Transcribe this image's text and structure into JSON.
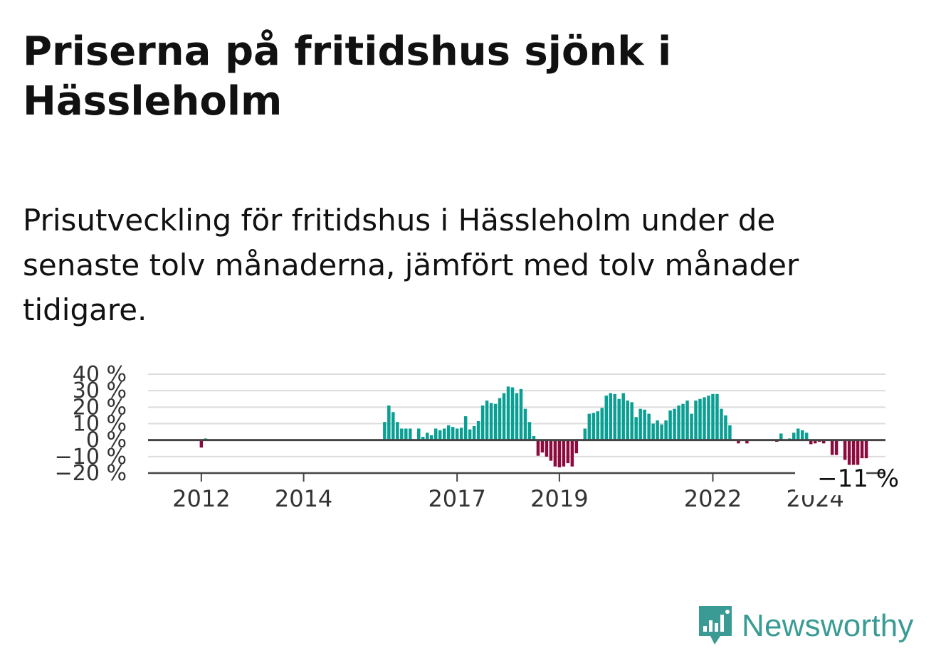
{
  "title": "Priserna på fritidshus sjönk i Hässleholm",
  "subtitle": "Prisutveckling för fritidshus i Hässleholm under de senaste tolv månaderna, jämfört med tolv månader tidigare.",
  "brand": {
    "name": "Newsworthy",
    "color": "#3a9b95",
    "logo_icon": "newsworthy-bar-chart-icon"
  },
  "colors": {
    "positive": "#0a9f93",
    "negative": "#8c0a3e",
    "grid": "#dcdcdc",
    "zero_line": "#444444",
    "axis_text": "#333333"
  },
  "chart_data": {
    "type": "bar",
    "title": "",
    "xlabel": "",
    "ylabel": "",
    "ylim": [
      -20,
      40
    ],
    "yticks": [
      40,
      30,
      20,
      10,
      0,
      -10,
      -20
    ],
    "ytick_labels": [
      "40 %",
      "30 %",
      "20 %",
      "10 %",
      "0 %",
      "−10 %",
      "−20 %"
    ],
    "x_start": "2011-01",
    "x_end": "2025-05",
    "xtick_labels": [
      "2012",
      "2014",
      "2017",
      "2019",
      "2022",
      "2024"
    ],
    "xticks": [
      "2012-01",
      "2014-01",
      "2017-01",
      "2019-01",
      "2022-01",
      "2024-01"
    ],
    "grid": true,
    "last_value_label": "−11 %",
    "series": [
      {
        "values": [
          {
            "date": "2012-01",
            "value": -4.5
          },
          {
            "date": "2012-02",
            "value": 1
          },
          {
            "date": "2015-08",
            "value": 11
          },
          {
            "date": "2015-09",
            "value": 21
          },
          {
            "date": "2015-10",
            "value": 17
          },
          {
            "date": "2015-11",
            "value": 11
          },
          {
            "date": "2015-12",
            "value": 7
          },
          {
            "date": "2016-01",
            "value": 7
          },
          {
            "date": "2016-02",
            "value": 7
          },
          {
            "date": "2016-04",
            "value": 7
          },
          {
            "date": "2016-05",
            "value": 2
          },
          {
            "date": "2016-06",
            "value": 4.5
          },
          {
            "date": "2016-07",
            "value": 3
          },
          {
            "date": "2016-08",
            "value": 7
          },
          {
            "date": "2016-09",
            "value": 6
          },
          {
            "date": "2016-10",
            "value": 7
          },
          {
            "date": "2016-11",
            "value": 9
          },
          {
            "date": "2016-12",
            "value": 8
          },
          {
            "date": "2017-01",
            "value": 7
          },
          {
            "date": "2017-02",
            "value": 7.5
          },
          {
            "date": "2017-03",
            "value": 14.5
          },
          {
            "date": "2017-04",
            "value": 6.5
          },
          {
            "date": "2017-05",
            "value": 8.5
          },
          {
            "date": "2017-06",
            "value": 11.5
          },
          {
            "date": "2017-07",
            "value": 21
          },
          {
            "date": "2017-08",
            "value": 24
          },
          {
            "date": "2017-09",
            "value": 22.5
          },
          {
            "date": "2017-10",
            "value": 22
          },
          {
            "date": "2017-11",
            "value": 25.5
          },
          {
            "date": "2017-12",
            "value": 28.5
          },
          {
            "date": "2018-01",
            "value": 32.5
          },
          {
            "date": "2018-02",
            "value": 32
          },
          {
            "date": "2018-03",
            "value": 28.5
          },
          {
            "date": "2018-04",
            "value": 31
          },
          {
            "date": "2018-05",
            "value": 19
          },
          {
            "date": "2018-06",
            "value": 11
          },
          {
            "date": "2018-07",
            "value": 2.5
          },
          {
            "date": "2018-08",
            "value": -9.5
          },
          {
            "date": "2018-09",
            "value": -7.5
          },
          {
            "date": "2018-10",
            "value": -10
          },
          {
            "date": "2018-11",
            "value": -12.5
          },
          {
            "date": "2018-12",
            "value": -16
          },
          {
            "date": "2019-01",
            "value": -16.5
          },
          {
            "date": "2019-02",
            "value": -16
          },
          {
            "date": "2019-03",
            "value": -14
          },
          {
            "date": "2019-04",
            "value": -16
          },
          {
            "date": "2019-05",
            "value": -8
          },
          {
            "date": "2019-07",
            "value": 7
          },
          {
            "date": "2019-08",
            "value": 16
          },
          {
            "date": "2019-09",
            "value": 16.5
          },
          {
            "date": "2019-10",
            "value": 17.5
          },
          {
            "date": "2019-11",
            "value": 19.5
          },
          {
            "date": "2019-12",
            "value": 27
          },
          {
            "date": "2020-01",
            "value": 28.5
          },
          {
            "date": "2020-02",
            "value": 28
          },
          {
            "date": "2020-03",
            "value": 25
          },
          {
            "date": "2020-04",
            "value": 28.5
          },
          {
            "date": "2020-05",
            "value": 24
          },
          {
            "date": "2020-06",
            "value": 23
          },
          {
            "date": "2020-07",
            "value": 14
          },
          {
            "date": "2020-08",
            "value": 19
          },
          {
            "date": "2020-09",
            "value": 18.5
          },
          {
            "date": "2020-10",
            "value": 16
          },
          {
            "date": "2020-11",
            "value": 10
          },
          {
            "date": "2020-12",
            "value": 12
          },
          {
            "date": "2021-01",
            "value": 9.5
          },
          {
            "date": "2021-02",
            "value": 12
          },
          {
            "date": "2021-03",
            "value": 18
          },
          {
            "date": "2021-04",
            "value": 19
          },
          {
            "date": "2021-05",
            "value": 21
          },
          {
            "date": "2021-06",
            "value": 22
          },
          {
            "date": "2021-07",
            "value": 24
          },
          {
            "date": "2021-08",
            "value": 16
          },
          {
            "date": "2021-09",
            "value": 24
          },
          {
            "date": "2021-10",
            "value": 25
          },
          {
            "date": "2021-11",
            "value": 26
          },
          {
            "date": "2021-12",
            "value": 27
          },
          {
            "date": "2022-01",
            "value": 28
          },
          {
            "date": "2022-02",
            "value": 28
          },
          {
            "date": "2022-03",
            "value": 19
          },
          {
            "date": "2022-04",
            "value": 15
          },
          {
            "date": "2022-05",
            "value": 9
          },
          {
            "date": "2022-07",
            "value": -2
          },
          {
            "date": "2022-09",
            "value": -2
          },
          {
            "date": "2023-04",
            "value": -1
          },
          {
            "date": "2023-05",
            "value": 4
          },
          {
            "date": "2023-07",
            "value": 1
          },
          {
            "date": "2023-08",
            "value": 4.5
          },
          {
            "date": "2023-09",
            "value": 7
          },
          {
            "date": "2023-10",
            "value": 6
          },
          {
            "date": "2023-11",
            "value": 4.5
          },
          {
            "date": "2023-12",
            "value": -2.5
          },
          {
            "date": "2024-01",
            "value": -2
          },
          {
            "date": "2024-02",
            "value": -1
          },
          {
            "date": "2024-03",
            "value": -2
          },
          {
            "date": "2024-05",
            "value": -9
          },
          {
            "date": "2024-06",
            "value": -9
          },
          {
            "date": "2024-08",
            "value": -12
          },
          {
            "date": "2024-09",
            "value": -15
          },
          {
            "date": "2024-10",
            "value": -15
          },
          {
            "date": "2024-11",
            "value": -15
          },
          {
            "date": "2024-12",
            "value": -11
          },
          {
            "date": "2025-01",
            "value": -11
          }
        ]
      }
    ]
  }
}
